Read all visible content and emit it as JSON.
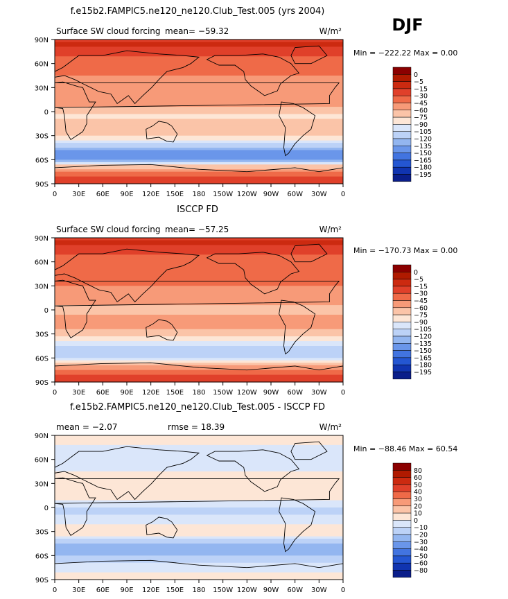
{
  "season": "DJF",
  "chart_data": [
    {
      "type": "heatmap",
      "title": "f.e15b2.FAMPIC5.ne120_ne120.Club_Test.005 (yrs 2004)",
      "left_label": "Surface SW cloud forcing",
      "center_label": "mean=  −59.32",
      "units": "W/m²",
      "min_max": "Min = −222.22 Max =    0.00",
      "x_ticks": [
        "0",
        "30E",
        "60E",
        "90E",
        "120E",
        "150E",
        "180",
        "150W",
        "120W",
        "90W",
        "60W",
        "30W",
        "0"
      ],
      "y_ticks": [
        "90N",
        "60N",
        "30N",
        "0",
        "30S",
        "60S",
        "90S"
      ],
      "colorbar": {
        "labels": [
          "0",
          "−5",
          "−15",
          "−30",
          "−45",
          "−60",
          "−75",
          "−90",
          "−105",
          "−120",
          "−135",
          "−150",
          "−165",
          "−180",
          "−195"
        ],
        "colors": [
          "#8b0000",
          "#b01a00",
          "#cc2a10",
          "#e0402a",
          "#ef6a48",
          "#f79a78",
          "#fbc4a8",
          "#fde6d6",
          "#dae6fa",
          "#bcd2f7",
          "#93b6f0",
          "#6a96ea",
          "#4274e0",
          "#2456d2",
          "#1034b0",
          "#0a1e8a"
        ]
      },
      "zonal_profile": [
        {
          "lat": 88,
          "value": -5
        },
        {
          "lat": 80,
          "value": -15
        },
        {
          "lat": 70,
          "value": -30
        },
        {
          "lat": 55,
          "value": -40
        },
        {
          "lat": 45,
          "value": -45
        },
        {
          "lat": 30,
          "value": -45
        },
        {
          "lat": 15,
          "value": -50
        },
        {
          "lat": 5,
          "value": -60
        },
        {
          "lat": -5,
          "value": -80
        },
        {
          "lat": -15,
          "value": -70
        },
        {
          "lat": -25,
          "value": -65
        },
        {
          "lat": -35,
          "value": -85
        },
        {
          "lat": -45,
          "value": -125
        },
        {
          "lat": -52,
          "value": -150
        },
        {
          "lat": -60,
          "value": -135
        },
        {
          "lat": -68,
          "value": -70
        },
        {
          "lat": -80,
          "value": -30
        },
        {
          "lat": -90,
          "value": -15
        }
      ]
    },
    {
      "type": "heatmap",
      "title": "ISCCP FD",
      "left_label": "Surface SW cloud forcing",
      "center_label": "mean=  −57.25",
      "units": "W/m²",
      "min_max": "Min = −170.73 Max =    0.00",
      "x_ticks": [
        "0",
        "30E",
        "60E",
        "90E",
        "120E",
        "150E",
        "180",
        "150W",
        "120W",
        "90W",
        "60W",
        "30W",
        "0"
      ],
      "y_ticks": [
        "90N",
        "60N",
        "30N",
        "0",
        "30S",
        "60S",
        "90S"
      ],
      "colorbar": {
        "labels": [
          "0",
          "−5",
          "−15",
          "−30",
          "−45",
          "−60",
          "−75",
          "−90",
          "−105",
          "−120",
          "−135",
          "−150",
          "−165",
          "−180",
          "−195"
        ],
        "colors": [
          "#8b0000",
          "#b01a00",
          "#cc2a10",
          "#e0402a",
          "#ef6a48",
          "#f79a78",
          "#fbc4a8",
          "#fde6d6",
          "#dae6fa",
          "#bcd2f7",
          "#93b6f0",
          "#6a96ea",
          "#4274e0",
          "#2456d2",
          "#1034b0",
          "#0a1e8a"
        ]
      },
      "zonal_profile": [
        {
          "lat": 88,
          "value": -10
        },
        {
          "lat": 80,
          "value": -15
        },
        {
          "lat": 70,
          "value": -30
        },
        {
          "lat": 55,
          "value": -40
        },
        {
          "lat": 45,
          "value": -40
        },
        {
          "lat": 30,
          "value": -45
        },
        {
          "lat": 15,
          "value": -55
        },
        {
          "lat": 5,
          "value": -60
        },
        {
          "lat": -5,
          "value": -60
        },
        {
          "lat": -15,
          "value": -55
        },
        {
          "lat": -25,
          "value": -60
        },
        {
          "lat": -35,
          "value": -80
        },
        {
          "lat": -45,
          "value": -105
        },
        {
          "lat": -52,
          "value": -120
        },
        {
          "lat": -60,
          "value": -110
        },
        {
          "lat": -68,
          "value": -60
        },
        {
          "lat": -80,
          "value": -30
        },
        {
          "lat": -90,
          "value": -20
        }
      ]
    },
    {
      "type": "heatmap",
      "title": "f.e15b2.FAMPIC5.ne120_ne120.Club_Test.005 - ISCCP FD",
      "left_label": "mean =   −2.07",
      "center_label": "rmse =   18.39",
      "units": "W/m²",
      "min_max": "Min = −88.46 Max =   60.54",
      "x_ticks": [
        "0",
        "30E",
        "60E",
        "90E",
        "120E",
        "150E",
        "180",
        "150W",
        "120W",
        "90W",
        "60W",
        "30W",
        "0"
      ],
      "y_ticks": [
        "90N",
        "60N",
        "30N",
        "0",
        "30S",
        "60S",
        "90S"
      ],
      "colorbar": {
        "labels": [
          "80",
          "60",
          "50",
          "40",
          "30",
          "20",
          "10",
          "0",
          "−10",
          "−20",
          "−30",
          "−40",
          "−50",
          "−60",
          "−80"
        ],
        "colors": [
          "#8b0000",
          "#b01a00",
          "#cc2a10",
          "#e0402a",
          "#ef6a48",
          "#f79a78",
          "#fbc4a8",
          "#fde6d6",
          "#dae6fa",
          "#bcd2f7",
          "#93b6f0",
          "#6a96ea",
          "#4274e0",
          "#2456d2",
          "#1034b0",
          "#0a1e8a"
        ]
      },
      "zonal_profile": [
        {
          "lat": 88,
          "value": 2
        },
        {
          "lat": 70,
          "value": -2
        },
        {
          "lat": 55,
          "value": -5
        },
        {
          "lat": 45,
          "value": 0
        },
        {
          "lat": 30,
          "value": 2
        },
        {
          "lat": 15,
          "value": 5
        },
        {
          "lat": 5,
          "value": -5
        },
        {
          "lat": -5,
          "value": -15
        },
        {
          "lat": -15,
          "value": -5
        },
        {
          "lat": -25,
          "value": 5
        },
        {
          "lat": -35,
          "value": 0
        },
        {
          "lat": -45,
          "value": -20
        },
        {
          "lat": -52,
          "value": -30
        },
        {
          "lat": -60,
          "value": -20
        },
        {
          "lat": -68,
          "value": -10
        },
        {
          "lat": -80,
          "value": 0
        },
        {
          "lat": -90,
          "value": 5
        }
      ]
    }
  ]
}
